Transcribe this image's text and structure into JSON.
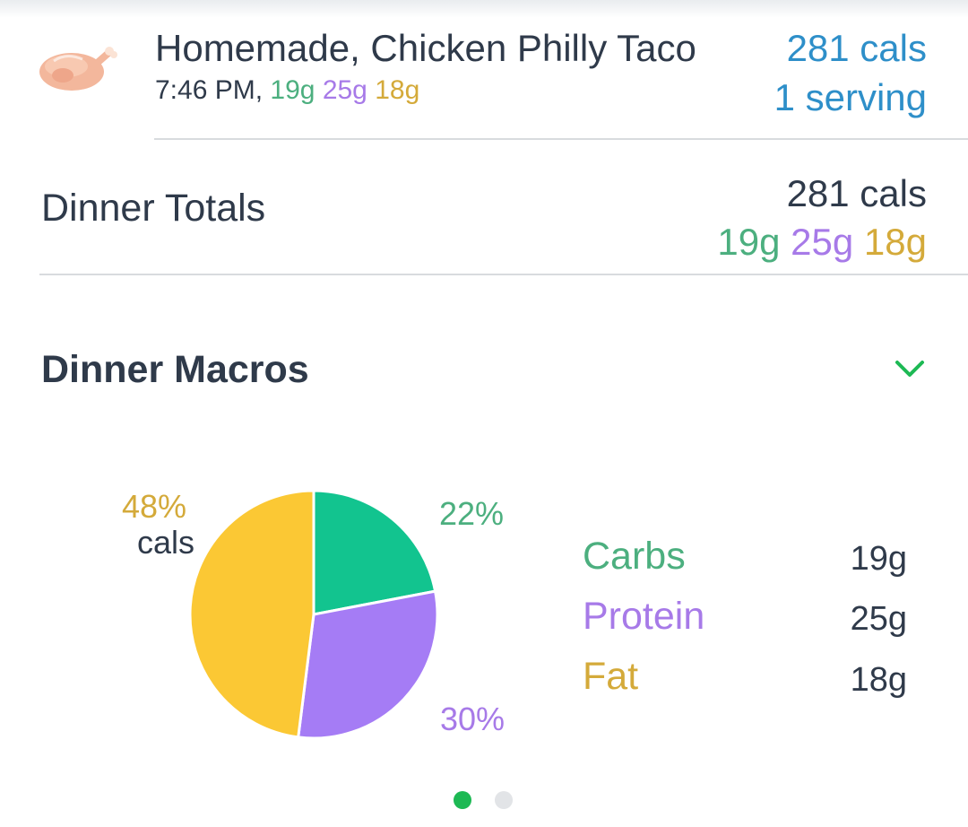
{
  "food": {
    "name": "Homemade, Chicken Philly Taco",
    "time": "7:46 PM,",
    "carbs": "19g",
    "protein": "25g",
    "fat": "18g",
    "cals": "281 cals",
    "serving": "1 serving",
    "icon": "roast-chicken-icon"
  },
  "totals": {
    "title": "Dinner Totals",
    "cals": "281 cals",
    "carbs": "19g",
    "protein": "25g",
    "fat": "18g"
  },
  "macros": {
    "title": "Dinner Macros",
    "expand_icon": "chevron-down-icon",
    "pie_labels": {
      "fat_pct": "48%",
      "cals": "cals",
      "carbs_pct": "22%",
      "protein_pct": "30%"
    },
    "legend": [
      {
        "name": "Carbs",
        "value": "19g"
      },
      {
        "name": "Protein",
        "value": "25g"
      },
      {
        "name": "Fat",
        "value": "18g"
      }
    ],
    "pager": {
      "pages": 2,
      "active": 1
    }
  },
  "colors": {
    "carbs": "#4caf7f",
    "protein": "#a77ae8",
    "fat": "#d4aa3a",
    "carbs_slice": "#12c48f",
    "protein_slice": "#a57cf5",
    "fat_slice": "#fbc834",
    "link_blue": "#2e8fc9",
    "accent_green": "#1db954",
    "dot_inactive": "#e2e4e7"
  },
  "chart_data": {
    "type": "pie",
    "categories": [
      "Carbs",
      "Protein",
      "Fat"
    ],
    "values": [
      22,
      30,
      48
    ],
    "unit": "% cals"
  }
}
